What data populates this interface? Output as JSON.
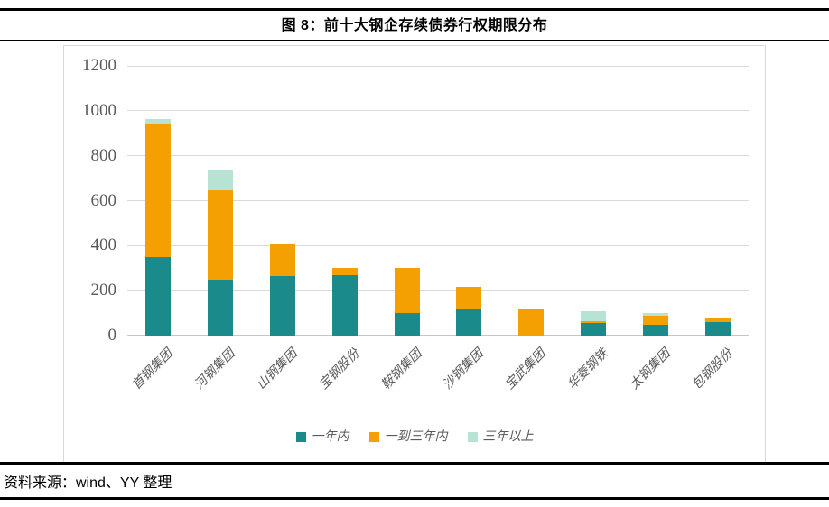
{
  "figure": {
    "title": "图 8：前十大钢企存续债券行权期限分布"
  },
  "source": {
    "text": "资料来源：wind、YY 整理"
  },
  "chart_data": {
    "type": "bar",
    "stacked": true,
    "title": "图 8：前十大钢企存续债券行权期限分布",
    "xlabel": "",
    "ylabel": "",
    "categories": [
      "首钢集团",
      "河钢集团",
      "山钢集团",
      "宝钢股份",
      "鞍钢集团",
      "沙钢集团",
      "宝武集团",
      "华菱钢铁",
      "太钢集团",
      "包钢股份"
    ],
    "series": [
      {
        "name": "一年内",
        "color": "#1A8B8A",
        "values": [
          350,
          250,
          265,
          270,
          100,
          120,
          0,
          55,
          50,
          60
        ]
      },
      {
        "name": "一到三年内",
        "color": "#F5A002",
        "values": [
          595,
          395,
          145,
          30,
          200,
          95,
          120,
          10,
          40,
          20
        ]
      },
      {
        "name": "三年以上",
        "color": "#B6E3D4",
        "values": [
          20,
          95,
          0,
          0,
          0,
          0,
          0,
          45,
          10,
          0
        ]
      }
    ],
    "totals": [
      965,
      740,
      410,
      300,
      300,
      215,
      120,
      110,
      100,
      80
    ],
    "ylim": [
      0,
      1200
    ],
    "yticks": [
      0,
      200,
      400,
      600,
      800,
      1000,
      1200
    ],
    "grid": true,
    "grid_color": "#d9d9d9",
    "axis_color": "#c6c6c6",
    "tick_label_color": "#595959",
    "legend_position": "bottom"
  }
}
